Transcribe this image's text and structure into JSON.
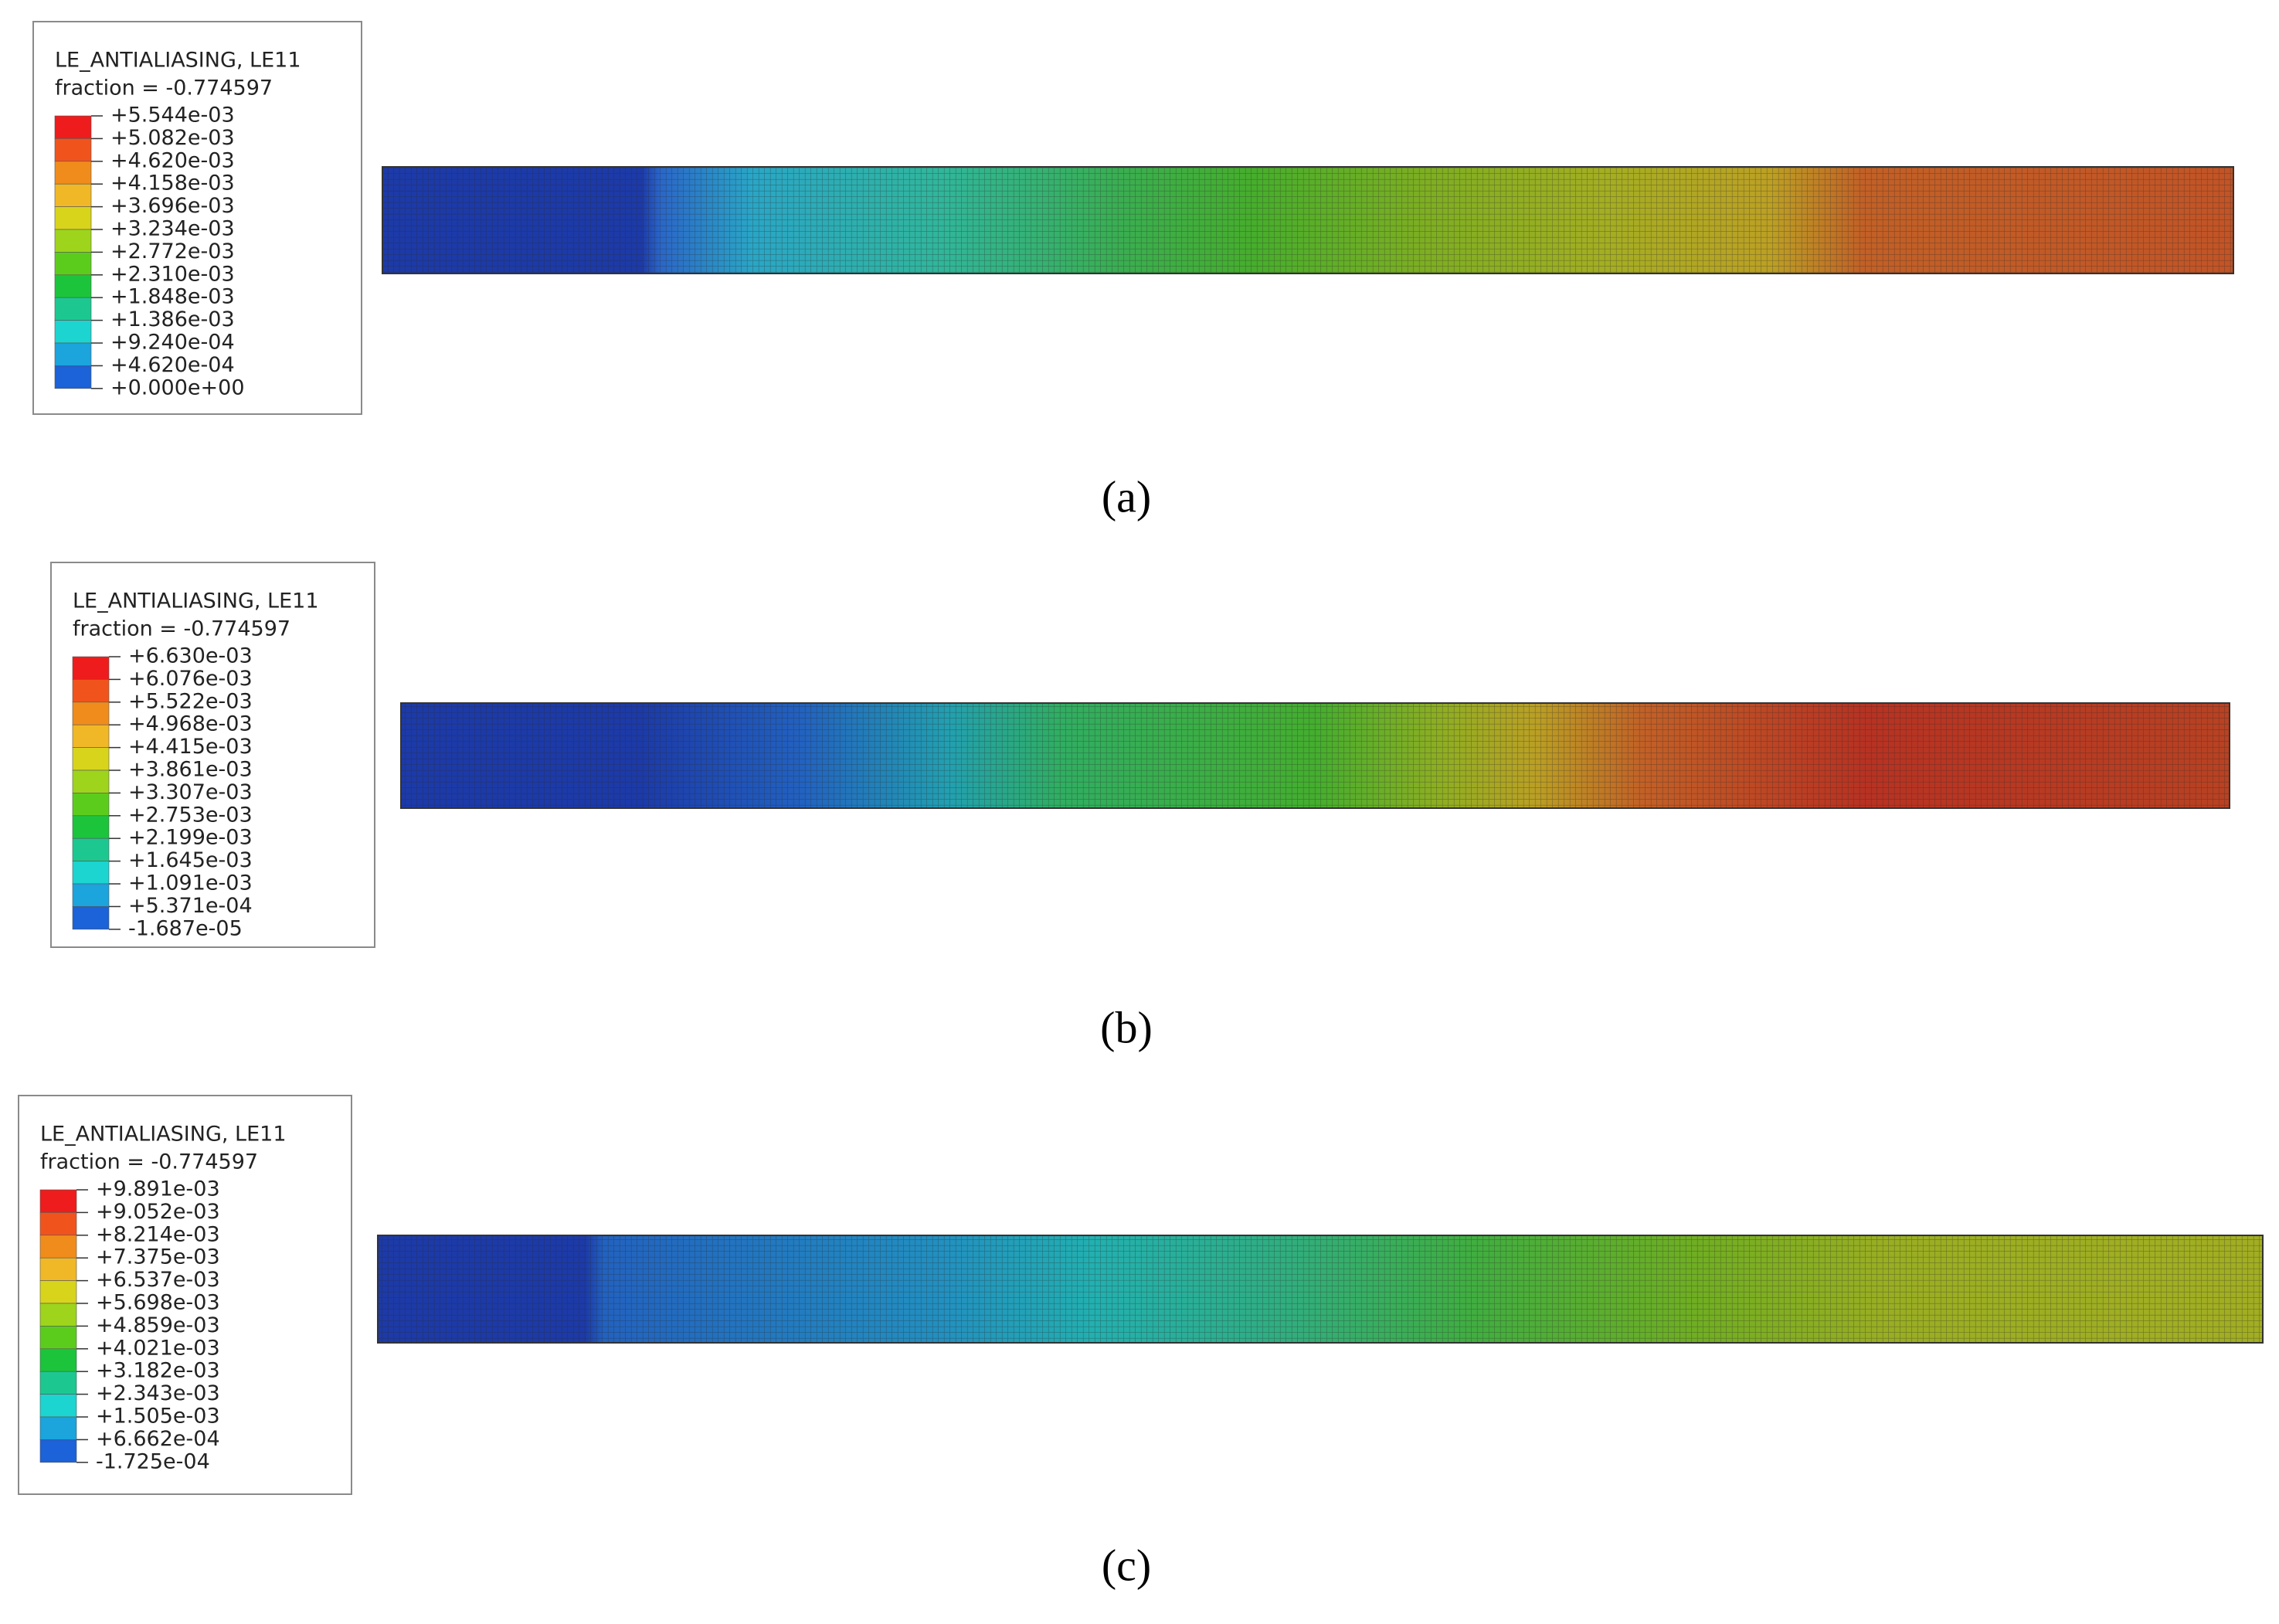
{
  "panels": [
    {
      "legend": {
        "title": "LE_ANTIALIASING, LE11",
        "fraction": "fraction = -0.774597",
        "ticks": [
          "+5.544e-03",
          "+5.082e-03",
          "+4.620e-03",
          "+4.158e-03",
          "+3.696e-03",
          "+3.234e-03",
          "+2.772e-03",
          "+2.310e-03",
          "+1.848e-03",
          "+1.386e-03",
          "+9.240e-04",
          "+4.620e-04",
          "+0.000e+00"
        ]
      },
      "caption": "(a)"
    },
    {
      "legend": {
        "title": "LE_ANTIALIASING, LE11",
        "fraction": "fraction = -0.774597",
        "ticks": [
          "+6.630e-03",
          "+6.076e-03",
          "+5.522e-03",
          "+4.968e-03",
          "+4.415e-03",
          "+3.861e-03",
          "+3.307e-03",
          "+2.753e-03",
          "+2.199e-03",
          "+1.645e-03",
          "+1.091e-03",
          "+5.371e-04",
          "-1.687e-05"
        ]
      },
      "caption": "(b)"
    },
    {
      "legend": {
        "title": "LE_ANTIALIASING, LE11",
        "fraction": "fraction = -0.774597",
        "ticks": [
          "+9.891e-03",
          "+9.052e-03",
          "+8.214e-03",
          "+7.375e-03",
          "+6.537e-03",
          "+5.698e-03",
          "+4.859e-03",
          "+4.021e-03",
          "+3.182e-03",
          "+2.343e-03",
          "+1.505e-03",
          "+6.662e-04",
          "-1.725e-04"
        ]
      },
      "caption": "(c)"
    }
  ]
}
